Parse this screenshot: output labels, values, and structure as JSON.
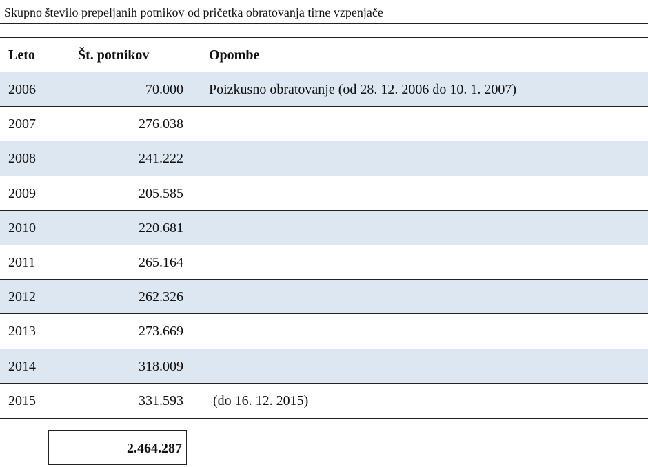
{
  "title": "Skupno število prepeljanih potnikov od pričetka obratovanja tirne vzpenjače",
  "table": {
    "columns": [
      "Leto",
      "Št. potnikov",
      "Opombe"
    ],
    "rows": [
      {
        "year": "2006",
        "passengers": "70.000",
        "note": "Poizkusno obratovanje (od 28. 12. 2006 do 10. 1. 2007)"
      },
      {
        "year": "2007",
        "passengers": "276.038"
      },
      {
        "year": "2008",
        "passengers": "241.222"
      },
      {
        "year": "2009",
        "passengers": "205.585"
      },
      {
        "year": "2010",
        "passengers": "220.681"
      },
      {
        "year": "2011",
        "passengers": "265.164"
      },
      {
        "year": "2012",
        "passengers": "262.326"
      },
      {
        "year": "2013",
        "passengers": "273.669"
      },
      {
        "year": "2014",
        "passengers": "318.009"
      },
      {
        "year": "2015",
        "passengers": "331.593",
        "note": "(do 16. 12. 2015)"
      }
    ],
    "total": "2.464.287"
  }
}
